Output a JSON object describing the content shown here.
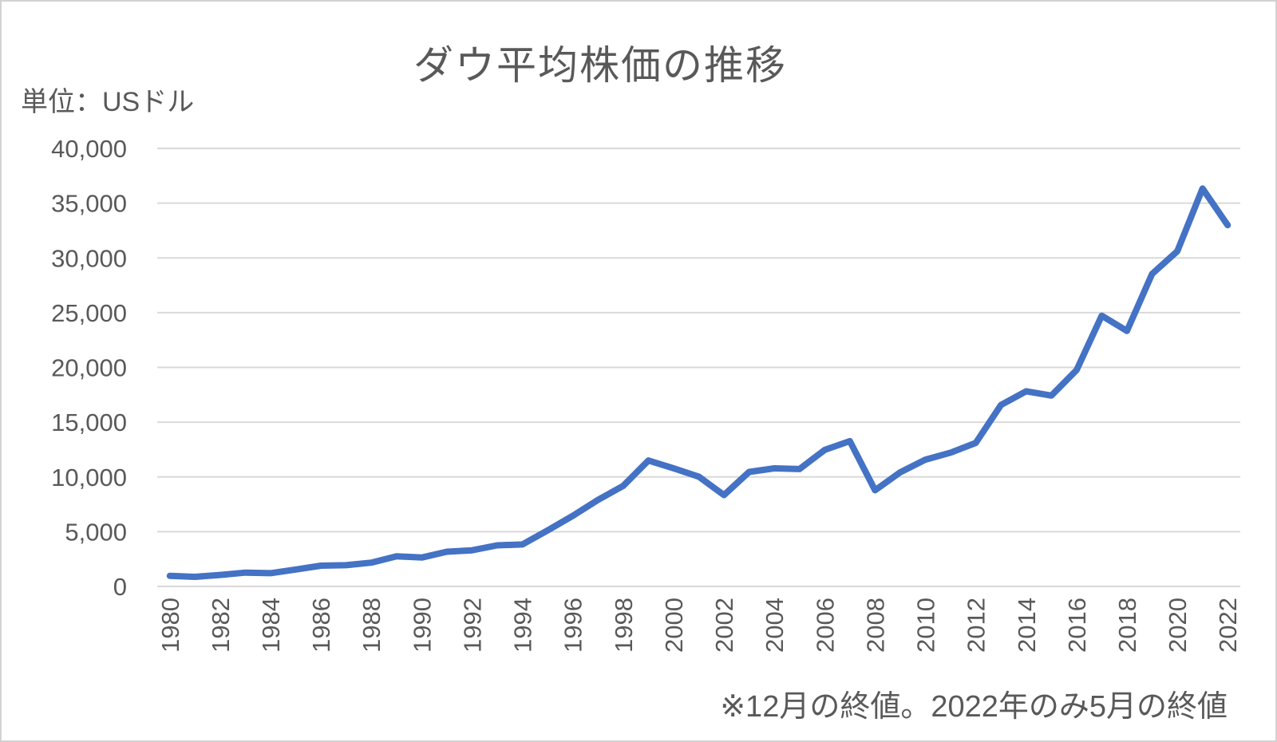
{
  "chart": {
    "title": "ダウ平均株価の推移",
    "unit_label": "単位：USドル",
    "footnote": "※12月の終値。2022年のみ5月の終値"
  },
  "chart_data": {
    "type": "line",
    "title": "ダウ平均株価の推移",
    "unit_label": "単位：USドル",
    "footnote": "※12月の終値。2022年のみ5月の終値",
    "series_name": "ダウ平均株価",
    "x": [
      1980,
      1981,
      1982,
      1983,
      1984,
      1985,
      1986,
      1987,
      1988,
      1989,
      1990,
      1991,
      1992,
      1993,
      1994,
      1995,
      1996,
      1997,
      1998,
      1999,
      2000,
      2001,
      2002,
      2003,
      2004,
      2005,
      2006,
      2007,
      2008,
      2009,
      2010,
      2011,
      2012,
      2013,
      2014,
      2015,
      2016,
      2017,
      2018,
      2019,
      2020,
      2021,
      2022
    ],
    "values": [
      964,
      875,
      1047,
      1259,
      1212,
      1547,
      1896,
      1939,
      2169,
      2753,
      2634,
      3169,
      3301,
      3754,
      3834,
      5117,
      6448,
      7908,
      9181,
      11497,
      10787,
      10022,
      8342,
      10454,
      10783,
      10718,
      12463,
      13265,
      8776,
      10428,
      11578,
      12218,
      13104,
      16577,
      17823,
      17425,
      19763,
      24719,
      23327,
      28538,
      30606,
      36338,
      32990
    ],
    "ylim": [
      0,
      40000
    ],
    "y_tick_step": 5000,
    "y_tick_labels": [
      "0",
      "5,000",
      "10,000",
      "15,000",
      "20,000",
      "25,000",
      "30,000",
      "35,000",
      "40,000"
    ],
    "x_tick_interval": 2,
    "x_tick_labels": [
      "1980",
      "1982",
      "1984",
      "1986",
      "1988",
      "1990",
      "1992",
      "1994",
      "1996",
      "1998",
      "2000",
      "2002",
      "2004",
      "2006",
      "2008",
      "2010",
      "2012",
      "2014",
      "2016",
      "2018",
      "2020",
      "2022"
    ],
    "grid": true,
    "legend": false,
    "line_color": "#4472C4",
    "grid_color": "#D9D9D9",
    "text_color": "#595959"
  }
}
